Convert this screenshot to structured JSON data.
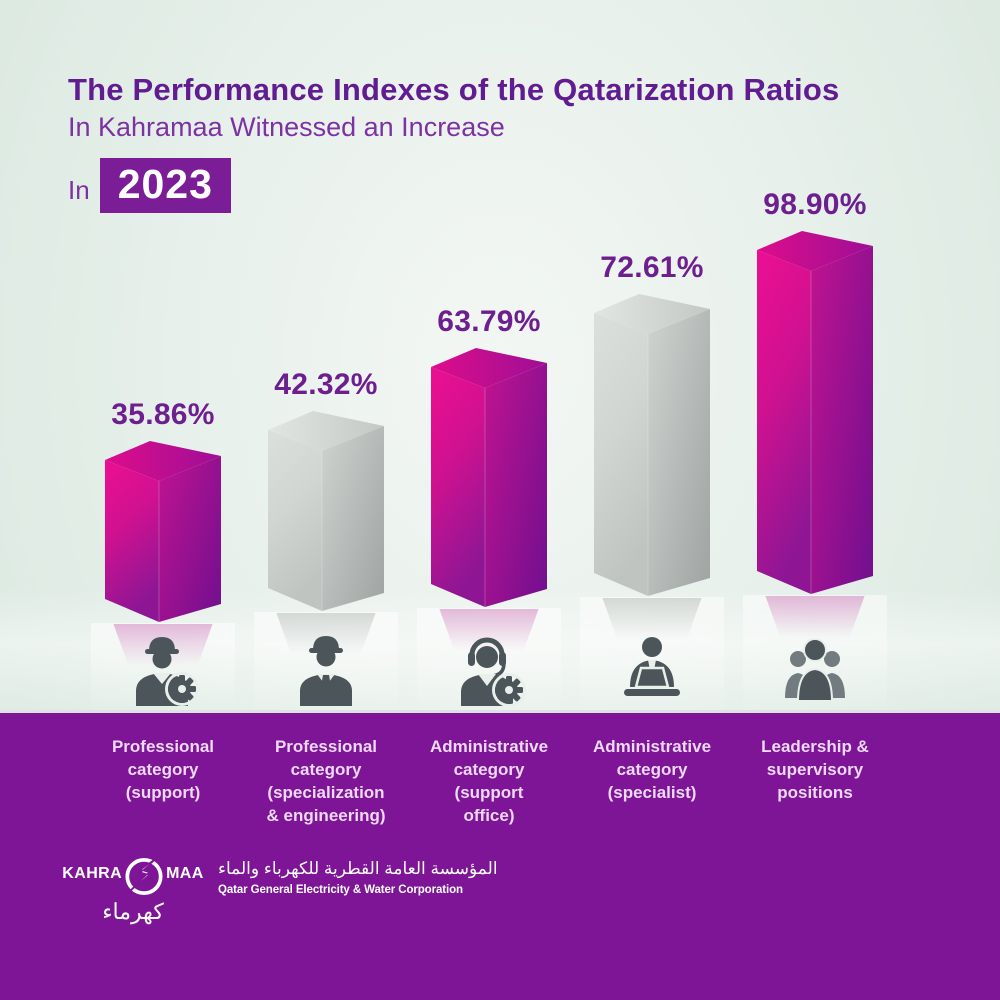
{
  "title": {
    "line1": "The Performance Indexes of the Qatarization Ratios",
    "line2": "In Kahramaa Witnessed an Increase",
    "year_prefix": "In",
    "year": "2023"
  },
  "chart_data": {
    "type": "bar",
    "title": "The Performance Indexes of the Qatarization Ratios In Kahramaa Witnessed an Increase In 2023",
    "unit": "%",
    "categories": [
      "Professional\ncategory\n(support)",
      "Professional\ncategory\n(specialization\n& engineering)",
      "Administrative\ncategory\n(support\noffice)",
      "Administrative\ncategory\n(specialist)",
      "Leadership &\nsupervisory\npositions"
    ],
    "values": [
      35.86,
      42.32,
      63.79,
      72.61,
      98.9
    ],
    "value_labels": [
      "35.86%",
      "42.32%",
      "63.79%",
      "72.61%",
      "98.90%"
    ],
    "bars": [
      {
        "value": 35.86,
        "label": "35.86%",
        "color": "magenta",
        "icon": "worker-gear-icon",
        "category": "Professional\ncategory\n(support)"
      },
      {
        "value": 42.32,
        "label": "42.32%",
        "color": "silver",
        "icon": "engineer-icon",
        "category": "Professional\ncategory\n(specialization\n& engineering)"
      },
      {
        "value": 63.79,
        "label": "63.79%",
        "color": "magenta",
        "icon": "support-agent-gear-icon",
        "category": "Administrative\ncategory\n(support\noffice)"
      },
      {
        "value": 72.61,
        "label": "72.61%",
        "color": "silver",
        "icon": "employee-laptop-icon",
        "category": "Administrative\ncategory\n(specialist)"
      },
      {
        "value": 98.9,
        "label": "98.90%",
        "color": "magenta",
        "icon": "team-icon",
        "category": "Leadership &\nsupervisory\npositions"
      }
    ],
    "layout": {
      "legend": false,
      "grid": false,
      "value_label_position": "above-bar",
      "bar_style": "3d-prism",
      "baseline": "perspective-floor"
    },
    "colors": {
      "magenta_front": "#e30f90",
      "magenta_side": "#8e1397",
      "silver_front": "#d6dad7",
      "silver_side": "#aab0ad",
      "value_label": "#6e1f8f",
      "icon": "#4c555a"
    }
  },
  "footer": {
    "band_color": "#7d1596",
    "logo": {
      "brand_left": "KAHRA",
      "brand_right": "MAA",
      "bolt_icon": "lightning-bolt-icon",
      "arabic_wordmark": "كهرماء",
      "arabic_name": "المؤسسة العامة القطرية للكهرباء والماء",
      "english_name": "Qatar General Electricity & Water Corporation"
    }
  }
}
